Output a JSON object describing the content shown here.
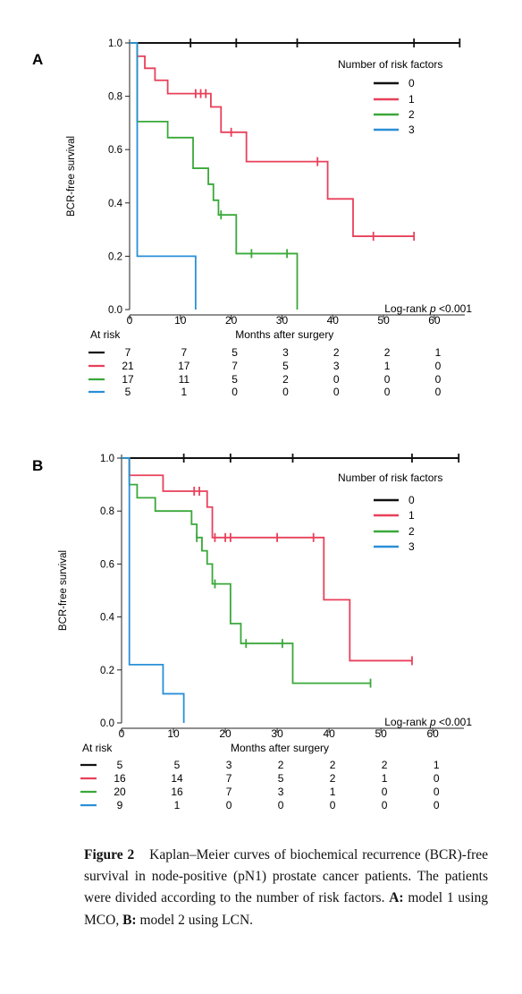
{
  "chart_data": [
    {
      "type": "line",
      "subtype": "kaplan-meier",
      "panel_label": "A",
      "ylabel": "BCR-free survival",
      "xlabel": "Months after surgery",
      "xlim": [
        0,
        66
      ],
      "ylim": [
        0,
        1.0
      ],
      "x_ticks": [
        0,
        10,
        20,
        30,
        40,
        50,
        60
      ],
      "y_ticks": [
        "0.0",
        "0.2",
        "0.4",
        "0.6",
        "0.8",
        "1.0"
      ],
      "legend_title": "Number of risk factors",
      "legend_placement": "top-right",
      "annotation": "Log-rank p <0.001",
      "at_risk_label": "At risk",
      "series": [
        {
          "name": "0",
          "color": "#111111",
          "x": [
            0,
            65
          ],
          "y": [
            1.0,
            1.0
          ],
          "censored": [
            12,
            21,
            33,
            56,
            65
          ]
        },
        {
          "name": "1",
          "color": "#e8405a",
          "x": [
            0,
            1.5,
            3,
            5,
            7.5,
            16,
            18,
            23,
            39,
            44,
            56
          ],
          "y": [
            1.0,
            0.95,
            0.905,
            0.86,
            0.81,
            0.76,
            0.665,
            0.555,
            0.415,
            0.275,
            0.275
          ],
          "censored": [
            13,
            14,
            15,
            20,
            37,
            48,
            56
          ]
        },
        {
          "name": "2",
          "color": "#3aa83a",
          "x": [
            0,
            1.5,
            7.5,
            12.5,
            15.5,
            16.5,
            17.5,
            21,
            33
          ],
          "y": [
            1.0,
            0.705,
            0.645,
            0.53,
            0.47,
            0.41,
            0.355,
            0.21,
            0.0
          ],
          "censored": [
            18,
            24,
            31
          ]
        },
        {
          "name": "3",
          "color": "#2a8fd8",
          "x": [
            0,
            1.5,
            13
          ],
          "y": [
            1.0,
            0.2,
            0.0
          ],
          "censored": []
        }
      ],
      "at_risk": {
        "times": [
          0,
          10,
          20,
          30,
          40,
          50,
          60
        ],
        "rows": [
          {
            "name": "0",
            "values": [
              7,
              7,
              5,
              3,
              2,
              2,
              1
            ]
          },
          {
            "name": "1",
            "values": [
              21,
              17,
              7,
              5,
              3,
              1,
              0
            ]
          },
          {
            "name": "2",
            "values": [
              17,
              11,
              5,
              2,
              0,
              0,
              0
            ]
          },
          {
            "name": "3",
            "values": [
              5,
              1,
              0,
              0,
              0,
              0,
              0
            ]
          }
        ]
      }
    },
    {
      "type": "line",
      "subtype": "kaplan-meier",
      "panel_label": "B",
      "ylabel": "BCR-free survival",
      "xlabel": "Months after surgery",
      "xlim": [
        0,
        66
      ],
      "ylim": [
        0,
        1.0
      ],
      "x_ticks": [
        0,
        10,
        20,
        30,
        40,
        50,
        60
      ],
      "y_ticks": [
        "0.0",
        "0.2",
        "0.4",
        "0.6",
        "0.8",
        "1.0"
      ],
      "legend_title": "Number of risk factors",
      "legend_placement": "top-right",
      "annotation": "Log-rank p <0.001",
      "at_risk_label": "At risk",
      "series": [
        {
          "name": "0",
          "color": "#111111",
          "x": [
            0,
            65
          ],
          "y": [
            1.0,
            1.0
          ],
          "censored": [
            12,
            21,
            33,
            56,
            65
          ]
        },
        {
          "name": "1",
          "color": "#e8405a",
          "x": [
            0,
            1.5,
            8,
            16.5,
            17.5,
            39,
            44,
            56
          ],
          "y": [
            1.0,
            0.935,
            0.875,
            0.815,
            0.7,
            0.465,
            0.235,
            0.235
          ],
          "censored": [
            14,
            15,
            18,
            20,
            21,
            30,
            37,
            56
          ]
        },
        {
          "name": "2",
          "color": "#3aa83a",
          "x": [
            0,
            1.5,
            3,
            6.5,
            13.5,
            14.5,
            15.5,
            16.5,
            17.5,
            21,
            23,
            33,
            48
          ],
          "y": [
            1.0,
            0.9,
            0.85,
            0.8,
            0.75,
            0.7,
            0.65,
            0.6,
            0.525,
            0.375,
            0.3,
            0.15,
            0.15
          ],
          "censored": [
            14.5,
            18,
            24,
            31,
            48
          ]
        },
        {
          "name": "3",
          "color": "#2a8fd8",
          "x": [
            0,
            1.5,
            8,
            12
          ],
          "y": [
            1.0,
            0.22,
            0.11,
            0.0
          ],
          "censored": []
        }
      ],
      "at_risk": {
        "times": [
          0,
          10,
          20,
          30,
          40,
          50,
          60
        ],
        "rows": [
          {
            "name": "0",
            "values": [
              5,
              5,
              3,
              2,
              2,
              2,
              1
            ]
          },
          {
            "name": "1",
            "values": [
              16,
              14,
              7,
              5,
              2,
              1,
              0
            ]
          },
          {
            "name": "2",
            "values": [
              20,
              16,
              7,
              3,
              1,
              0,
              0
            ]
          },
          {
            "name": "3",
            "values": [
              9,
              1,
              0,
              0,
              0,
              0,
              0
            ]
          }
        ]
      }
    }
  ],
  "caption": {
    "label": "Figure 2",
    "text": "Kaplan–Meier curves of biochemical recurrence (BCR)-free survival in node-positive (pN1) prostate cancer patients. The patients were divided according to the number of risk factors.",
    "a_label": "A:",
    "a_text": "model 1 using MCO,",
    "b_label": "B:",
    "b_text": "model 2 using LCN."
  }
}
